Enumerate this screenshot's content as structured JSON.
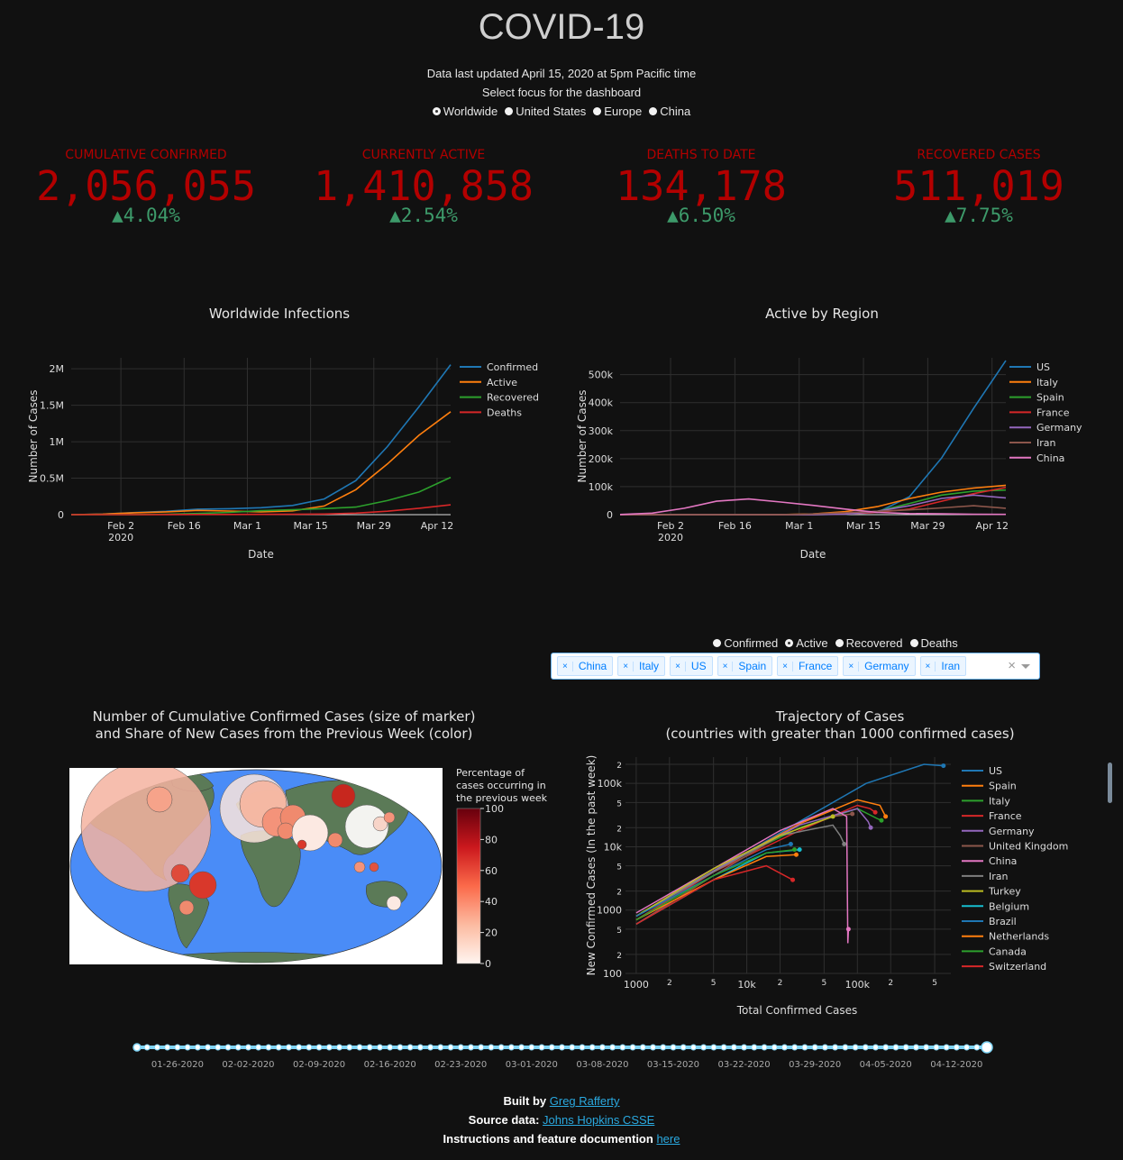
{
  "header": {
    "title": "COVID-19",
    "updated": "Data last updated April 15, 2020 at 5pm Pacific time",
    "focus_prompt": "Select focus for the dashboard",
    "focus_options": [
      "Worldwide",
      "United States",
      "Europe",
      "China"
    ],
    "focus_selected": "Worldwide"
  },
  "kpis": [
    {
      "label": "CUMULATIVE CONFIRMED",
      "value": "2,056,055",
      "change": "▲4.04%"
    },
    {
      "label": "CURRENTLY ACTIVE",
      "value": "1,410,858",
      "change": "▲2.54%"
    },
    {
      "label": "DEATHS TO DATE",
      "value": "134,178",
      "change": "▲6.50%"
    },
    {
      "label": "RECOVERED CASES",
      "value": "511,019",
      "change": "▲7.75%"
    }
  ],
  "colors": {
    "kpi": "#b30000",
    "change": "#3d9a6a",
    "background": "#111111"
  },
  "region_metric": {
    "options": [
      "Confirmed",
      "Active",
      "Recovered",
      "Deaths"
    ],
    "selected": "Active"
  },
  "region_dropdown": {
    "tags": [
      "China",
      "Italy",
      "US",
      "Spain",
      "France",
      "Germany",
      "Iran"
    ],
    "remove": "×",
    "clear": "×"
  },
  "map": {
    "title_line1": "Number of Cumulative Confirmed Cases (size of marker)",
    "title_line2": "and Share of New Cases from the Previous Week (color)",
    "colorbar_title": [
      "Percentage of",
      "cases occurring in",
      "the previous week"
    ],
    "colorbar_ticks": [
      "100",
      "80",
      "60",
      "40",
      "20",
      "0"
    ]
  },
  "slider": {
    "labels": [
      "01-26-2020",
      "02-02-2020",
      "02-09-2020",
      "02-16-2020",
      "02-23-2020",
      "03-01-2020",
      "03-08-2020",
      "03-15-2020",
      "03-22-2020",
      "03-29-2020",
      "04-05-2020",
      "04-12-2020"
    ]
  },
  "footer": {
    "built_by": "Built by",
    "author": "Greg Rafferty",
    "source_label": "Source data:",
    "source": "Johns Hopkins CSSE",
    "docs_label": "Instructions and feature documention",
    "docs_link": "here"
  },
  "chart_data": [
    {
      "type": "line",
      "title": "Worldwide Infections",
      "xlabel": "Date",
      "ylabel": "Number of Cases",
      "x_ticks": [
        "Feb 2\n2020",
        "Feb 16",
        "Mar 1",
        "Mar 15",
        "Mar 29",
        "Apr 12"
      ],
      "y_ticks": [
        "0",
        "0.5M",
        "1M",
        "1.5M",
        "2M"
      ],
      "ylim": [
        0,
        2150000
      ],
      "x": [
        "2020-01-22",
        "2020-01-29",
        "2020-02-05",
        "2020-02-12",
        "2020-02-19",
        "2020-02-26",
        "2020-03-04",
        "2020-03-11",
        "2020-03-18",
        "2020-03-25",
        "2020-04-01",
        "2020-04-08",
        "2020-04-15"
      ],
      "series": [
        {
          "name": "Confirmed",
          "color": "#1f77b4",
          "values": [
            555,
            7783,
            28276,
            45171,
            75641,
            81397,
            95123,
            125865,
            214910,
            467653,
            932605,
            1479804,
            2056055
          ]
        },
        {
          "name": "Active",
          "color": "#ff7f0e",
          "values": [
            510,
            7500,
            26500,
            38000,
            58500,
            50000,
            38500,
            52000,
            119000,
            342000,
            694000,
            1089000,
            1410858
          ]
        },
        {
          "name": "Recovered",
          "color": "#2ca02c",
          "values": [
            28,
            133,
            1124,
            5150,
            16120,
            30384,
            53796,
            67003,
            83312,
            103286,
            193177,
            310000,
            511019
          ]
        },
        {
          "name": "Deaths",
          "color": "#d62728",
          "values": [
            17,
            170,
            564,
            1370,
            2122,
            2770,
            3281,
            4720,
            8733,
            21181,
            47245,
            88338,
            134178
          ]
        }
      ]
    },
    {
      "type": "line",
      "title": "Active by Region",
      "xlabel": "Date",
      "ylabel": "Number of Cases",
      "x_ticks": [
        "Feb 2\n2020",
        "Feb 16",
        "Mar 1",
        "Mar 15",
        "Mar 29",
        "Apr 12"
      ],
      "y_ticks": [
        "0",
        "100k",
        "200k",
        "300k",
        "400k",
        "500k"
      ],
      "ylim": [
        0,
        560000
      ],
      "x": [
        "2020-01-22",
        "2020-01-29",
        "2020-02-05",
        "2020-02-12",
        "2020-02-19",
        "2020-02-26",
        "2020-03-04",
        "2020-03-11",
        "2020-03-18",
        "2020-03-25",
        "2020-04-01",
        "2020-04-08",
        "2020-04-15"
      ],
      "series": [
        {
          "name": "US",
          "color": "#1f77b4",
          "values": [
            1,
            5,
            10,
            12,
            13,
            45,
            140,
            1200,
            7700,
            64000,
            202000,
            380000,
            550000
          ]
        },
        {
          "name": "Italy",
          "color": "#ff7f0e",
          "values": [
            0,
            0,
            2,
            3,
            3,
            400,
            2700,
            10600,
            28700,
            57500,
            80500,
            95000,
            105000
          ]
        },
        {
          "name": "Spain",
          "color": "#2ca02c",
          "values": [
            0,
            0,
            1,
            2,
            2,
            12,
            200,
            2000,
            12000,
            40000,
            70000,
            84000,
            88000
          ]
        },
        {
          "name": "France",
          "color": "#d62728",
          "values": [
            3,
            5,
            6,
            11,
            12,
            20,
            250,
            2200,
            8500,
            20000,
            48000,
            75000,
            97000
          ]
        },
        {
          "name": "Germany",
          "color": "#9467bd",
          "values": [
            0,
            4,
            12,
            14,
            14,
            20,
            260,
            1900,
            12000,
            32000,
            58000,
            70000,
            60000
          ]
        },
        {
          "name": "Iran",
          "color": "#8c564b",
          "values": [
            0,
            0,
            0,
            0,
            2,
            120,
            2700,
            7000,
            12000,
            17000,
            24000,
            32000,
            23000
          ]
        },
        {
          "name": "China",
          "color": "#e377c2",
          "values": [
            490,
            5500,
            23000,
            48000,
            56000,
            45000,
            33000,
            20000,
            8000,
            4000,
            2800,
            1400,
            1100
          ]
        }
      ]
    },
    {
      "type": "line",
      "title": "Trajectory of Cases",
      "subtitle": "(countries with greater than 1000 confirmed cases)",
      "xlabel": "Total Confirmed Cases",
      "ylabel": "New Confirmed Cases (In the past week)",
      "x_scale": "log",
      "y_scale": "log",
      "x_ticks": [
        "1000",
        "2",
        "5",
        "10k",
        "2",
        "5",
        "100k",
        "2",
        "5"
      ],
      "y_ticks": [
        "100",
        "2",
        "5",
        "1000",
        "2",
        "5",
        "10k",
        "2",
        "5",
        "100k",
        "2"
      ],
      "series": [
        {
          "name": "US",
          "color": "#1f77b4",
          "x": [
            1000,
            5000,
            30000,
            120000,
            400000,
            600000
          ],
          "y": [
            700,
            4000,
            25000,
            100000,
            200000,
            190000
          ]
        },
        {
          "name": "Spain",
          "color": "#ff7f0e",
          "x": [
            1000,
            6000,
            30000,
            100000,
            160000,
            180000
          ],
          "y": [
            800,
            5000,
            23000,
            55000,
            45000,
            30000
          ]
        },
        {
          "name": "Italy",
          "color": "#2ca02c",
          "x": [
            1100,
            6000,
            30000,
            100000,
            150000,
            165000
          ],
          "y": [
            900,
            5000,
            20000,
            40000,
            28000,
            26000
          ]
        },
        {
          "name": "France",
          "color": "#d62728",
          "x": [
            1000,
            5000,
            30000,
            100000,
            130000,
            145000
          ],
          "y": [
            700,
            4000,
            18000,
            45000,
            40000,
            35000
          ]
        },
        {
          "name": "Germany",
          "color": "#9467bd",
          "x": [
            1000,
            6000,
            30000,
            100000,
            125000,
            132000
          ],
          "y": [
            800,
            5000,
            22000,
            40000,
            25000,
            20000
          ]
        },
        {
          "name": "United Kingdom",
          "color": "#8c564b",
          "x": [
            1000,
            5000,
            20000,
            60000,
            90000
          ],
          "y": [
            600,
            3500,
            15000,
            30000,
            33000
          ]
        },
        {
          "name": "China",
          "color": "#e377c2",
          "x": [
            1000,
            5000,
            20000,
            60000,
            80000,
            82000,
            83000
          ],
          "y": [
            900,
            4500,
            18000,
            40000,
            30000,
            300,
            500
          ]
        },
        {
          "name": "Iran",
          "color": "#7f7f7f",
          "x": [
            1000,
            5000,
            20000,
            60000,
            70000,
            76000
          ],
          "y": [
            800,
            4000,
            15000,
            22000,
            15000,
            11000
          ]
        },
        {
          "name": "Turkey",
          "color": "#bcbd22",
          "x": [
            1000,
            5000,
            20000,
            60000
          ],
          "y": [
            800,
            4500,
            15000,
            30000
          ]
        },
        {
          "name": "Belgium",
          "color": "#17becf",
          "x": [
            1000,
            5000,
            15000,
            30000
          ],
          "y": [
            600,
            3000,
            8000,
            9000
          ]
        },
        {
          "name": "Brazil",
          "color": "#1f77b4",
          "x": [
            1000,
            5000,
            15000,
            25000
          ],
          "y": [
            800,
            3500,
            9000,
            11000
          ]
        },
        {
          "name": "Netherlands",
          "color": "#ff7f0e",
          "x": [
            1000,
            5000,
            15000,
            28000
          ],
          "y": [
            700,
            3000,
            7000,
            7500
          ]
        },
        {
          "name": "Canada",
          "color": "#2ca02c",
          "x": [
            1000,
            5000,
            15000,
            27000
          ],
          "y": [
            700,
            3500,
            8000,
            9000
          ]
        },
        {
          "name": "Switzerland",
          "color": "#d62728",
          "x": [
            1000,
            5000,
            15000,
            26000
          ],
          "y": [
            600,
            3000,
            5000,
            3000
          ]
        }
      ]
    }
  ]
}
